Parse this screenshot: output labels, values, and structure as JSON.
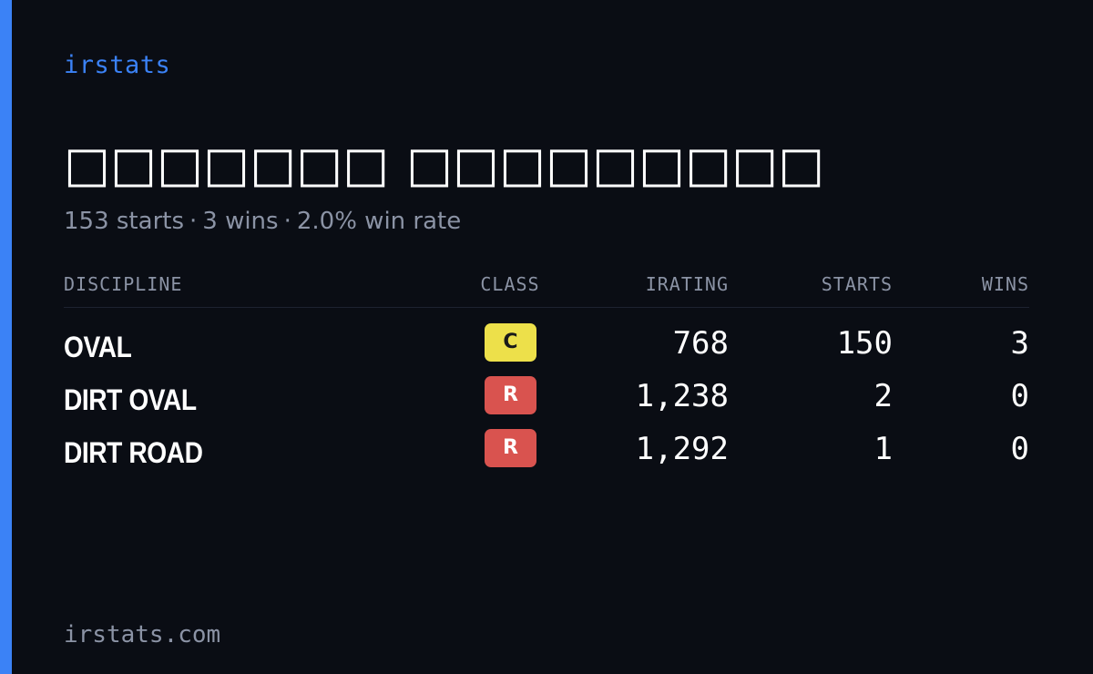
{
  "brand": "irstats",
  "driver": {
    "name": "□□□□□□□ □□□□□□□□□"
  },
  "summary": {
    "starts": "153 starts",
    "wins": "3 wins",
    "win_rate": "2.0% win rate",
    "separator": "·"
  },
  "table": {
    "headers": {
      "discipline": "DISCIPLINE",
      "class": "CLASS",
      "irating": "IRATING",
      "starts": "STARTS",
      "wins": "WINS"
    },
    "rows": [
      {
        "discipline": "OVAL",
        "class": "C",
        "class_color": "#ede04a",
        "class_text_color": "#1a1a1a",
        "irating": "768",
        "starts": "150",
        "wins": "3"
      },
      {
        "discipline": "DIRT OVAL",
        "class": "R",
        "class_color": "#d9534f",
        "class_text_color": "#ffffff",
        "irating": "1,238",
        "starts": "2",
        "wins": "0"
      },
      {
        "discipline": "DIRT ROAD",
        "class": "R",
        "class_color": "#d9534f",
        "class_text_color": "#ffffff",
        "irating": "1,292",
        "starts": "1",
        "wins": "0"
      }
    ]
  },
  "footer": "irstats.com",
  "colors": {
    "accent": "#3b82f6",
    "background": "#0a0d14",
    "muted": "#8b93a5"
  }
}
